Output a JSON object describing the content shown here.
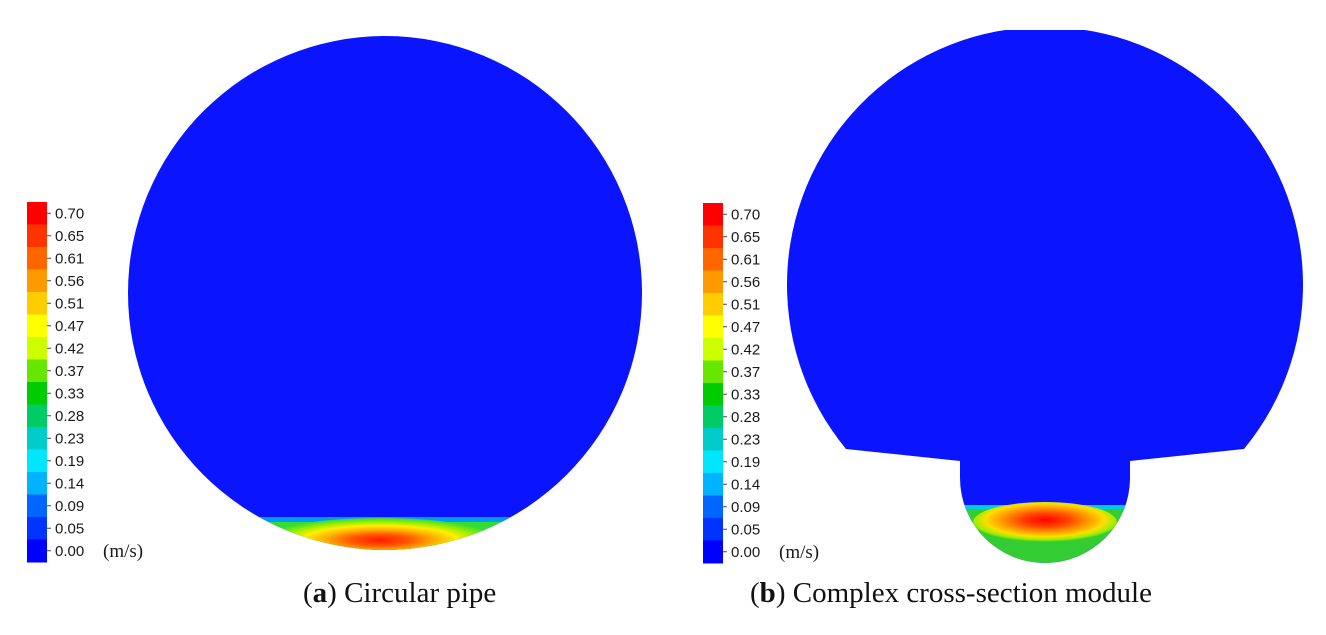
{
  "colorbar": {
    "unit": "(m/s)",
    "ticks": [
      "0.70",
      "0.65",
      "0.61",
      "0.56",
      "0.51",
      "0.47",
      "0.42",
      "0.37",
      "0.33",
      "0.28",
      "0.23",
      "0.19",
      "0.14",
      "0.09",
      "0.05",
      "0.00"
    ],
    "colors": [
      "#ff0000",
      "#ff3300",
      "#ff6600",
      "#ff9900",
      "#ffcc00",
      "#ffff00",
      "#ccff00",
      "#66e600",
      "#00cc00",
      "#00cc66",
      "#00cccc",
      "#00e6ff",
      "#00b3ff",
      "#0066ff",
      "#0033ff",
      "#0000ff"
    ]
  },
  "panels": [
    {
      "letter": "a",
      "caption": "Circular pipe"
    },
    {
      "letter": "b",
      "caption": "Complex cross-section module"
    }
  ],
  "colors": {
    "background_flow": "#0a14ff"
  }
}
